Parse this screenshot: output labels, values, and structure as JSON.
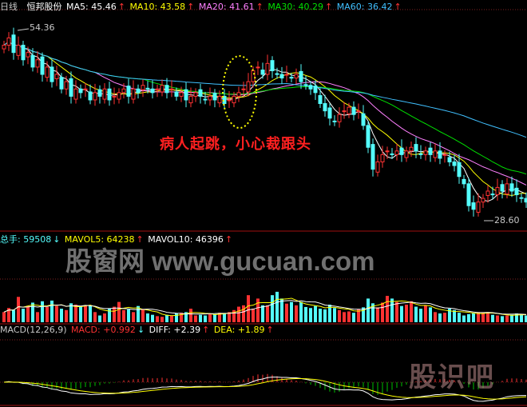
{
  "header": {
    "period": "日线",
    "stock_name": "恒邦股份",
    "ma5": "MA5: 45.46",
    "ma10": "MA10: 43.58",
    "ma20": "MA20: 41.61",
    "ma30": "MA30: 40.29",
    "ma60": "MA60: 36.42",
    "arrow_up": "↑",
    "arrow_down": "↓"
  },
  "volume_legend": {
    "total": "总手: 59508",
    "mavol5": "MAVOL5: 64238",
    "mavol10": "MAVOL10: 46396"
  },
  "macd_legend": {
    "params": "MACD(12,26,9)",
    "macd": "MACD: +0.992",
    "diff": "DIFF: +2.39",
    "dea": "DEA: +1.89"
  },
  "annotation": "病人起跳，小心裁跟头",
  "watermark": "股窗网 www.gucuan.com",
  "logo_text": "股识吧",
  "price_labels": {
    "high": "54.36",
    "low": "28.60"
  },
  "colors": {
    "up": "#ff3232",
    "down": "#54fcfc",
    "ma5": "#ffffff",
    "ma10": "#ffff00",
    "ma20": "#ff80ff",
    "ma30": "#00e000",
    "ma60": "#40c0ff",
    "ellipse": "#ffff00"
  },
  "chart_data": {
    "type": "candlestick",
    "ylim": [
      28.6,
      54.36
    ],
    "closes": [
      52,
      53,
      51,
      52,
      50,
      51,
      49,
      50,
      48,
      49,
      47,
      48,
      46,
      47,
      45,
      46,
      45.5,
      46,
      44.5,
      45.5,
      45,
      46,
      44.5,
      45,
      45.5,
      46,
      45,
      46,
      45.5,
      46.5,
      46,
      45.5,
      46,
      46.5,
      45.5,
      46,
      45,
      45.5,
      44.5,
      45,
      45.5,
      45,
      44.5,
      45,
      44.5,
      45,
      44,
      44.5,
      45,
      45.5,
      46,
      47,
      48.5,
      49,
      48,
      49.5,
      48.5,
      48,
      47.5,
      48,
      47.5,
      48,
      47,
      46.5,
      46,
      45.5,
      44,
      43,
      42,
      41.5,
      42.5,
      43,
      43.5,
      42.5,
      43,
      41,
      38,
      35,
      36,
      37,
      37.5,
      37,
      37.5,
      37,
      37.5,
      38,
      37.5,
      37,
      37.5,
      37,
      37.5,
      36.5,
      37,
      36,
      35.5,
      34,
      33,
      30,
      29.5,
      30.5,
      31,
      32,
      31.5,
      32.5,
      32,
      33,
      32,
      31.5,
      31,
      30.5
    ],
    "volumes": [
      30000,
      42000,
      36000,
      75000,
      40000,
      48000,
      58000,
      30000,
      62000,
      45000,
      64000,
      48000,
      40000,
      36000,
      56000,
      52000,
      46000,
      50000,
      50000,
      30000,
      20000,
      26000,
      40000,
      46000,
      60000,
      36000,
      38000,
      30000,
      48000,
      38000,
      26000,
      22000,
      18000,
      16000,
      22000,
      20000,
      26000,
      28000,
      30000,
      40000,
      20000,
      22000,
      20000,
      26000,
      24000,
      28000,
      26000,
      30000,
      36000,
      46000,
      50000,
      80000,
      40000,
      70000,
      50000,
      50000,
      80000,
      90000,
      70000,
      55000,
      60000,
      50000,
      60000,
      45000,
      42000,
      48000,
      40000,
      38000,
      52000,
      42000,
      36000,
      30000,
      32000,
      28000,
      38000,
      44000,
      70000,
      56000,
      44000,
      58000,
      78000,
      70000,
      60000,
      48000,
      52000,
      62000,
      46000,
      40000,
      50000,
      44000,
      30000,
      26000,
      28000,
      40000,
      36000,
      28000,
      20000,
      24000,
      26000,
      30000,
      28000,
      30000,
      22000,
      20000,
      18000,
      20000,
      22000,
      26000,
      24000,
      20000
    ]
  }
}
